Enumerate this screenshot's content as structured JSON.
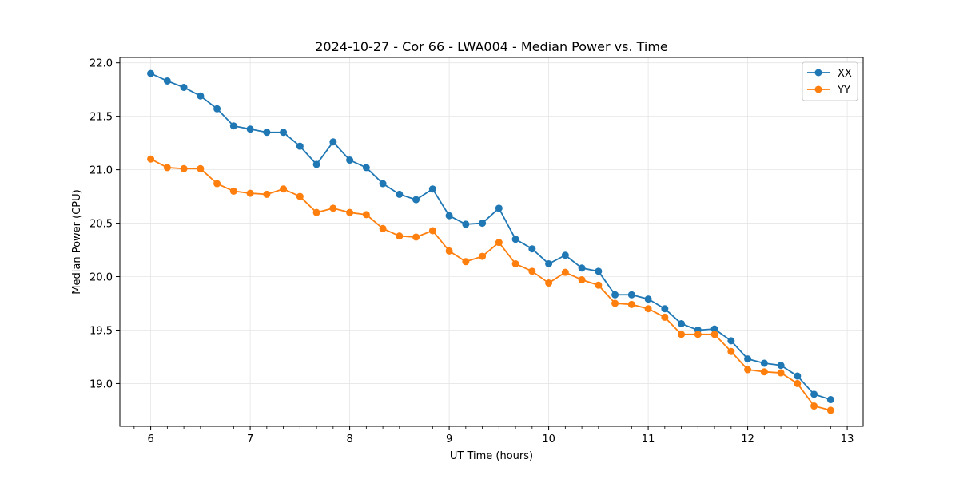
{
  "chart_data": {
    "type": "line",
    "title": "2024-10-27 - Cor 66 - LWA004 - Median Power vs. Time",
    "xlabel": "UT Time (hours)",
    "ylabel": "Median Power (CPU)",
    "xlim": [
      5.69,
      13.16
    ],
    "ylim": [
      18.6,
      22.05
    ],
    "xticks": [
      6,
      7,
      8,
      9,
      10,
      11,
      12,
      13
    ],
    "yticks": [
      19.0,
      19.5,
      20.0,
      20.5,
      21.0,
      21.5,
      22.0
    ],
    "ytick_labels": [
      "19.0",
      "19.5",
      "20.0",
      "20.5",
      "21.0",
      "21.5",
      "22.0"
    ],
    "grid": true,
    "legend_position": "top-right",
    "x": [
      6.0,
      6.1667,
      6.3333,
      6.5,
      6.6667,
      6.8333,
      7.0,
      7.1667,
      7.3333,
      7.5,
      7.6667,
      7.8333,
      8.0,
      8.1667,
      8.3333,
      8.5,
      8.6667,
      8.8333,
      9.0,
      9.1667,
      9.3333,
      9.5,
      9.6667,
      9.8333,
      10.0,
      10.1667,
      10.3333,
      10.5,
      10.6667,
      10.8333,
      11.0,
      11.1667,
      11.3333,
      11.5,
      11.6667,
      11.8333,
      12.0,
      12.1667,
      12.3333,
      12.5,
      12.6667,
      12.8333
    ],
    "series": [
      {
        "name": "XX",
        "color": "#1f77b4",
        "values": [
          21.9,
          21.83,
          21.77,
          21.69,
          21.57,
          21.41,
          21.38,
          21.35,
          21.35,
          21.22,
          21.05,
          21.26,
          21.09,
          21.02,
          20.87,
          20.77,
          20.72,
          20.82,
          20.57,
          20.49,
          20.5,
          20.64,
          20.35,
          20.26,
          20.12,
          20.2,
          20.08,
          20.05,
          19.83,
          19.83,
          19.79,
          19.7,
          19.56,
          19.5,
          19.51,
          19.4,
          19.23,
          19.19,
          19.17,
          19.07,
          18.9,
          18.85
        ]
      },
      {
        "name": "YY",
        "color": "#ff7f0e",
        "values": [
          21.1,
          21.02,
          21.01,
          21.01,
          20.87,
          20.8,
          20.78,
          20.77,
          20.82,
          20.75,
          20.6,
          20.64,
          20.6,
          20.58,
          20.45,
          20.38,
          20.37,
          20.43,
          20.24,
          20.14,
          20.19,
          20.32,
          20.12,
          20.05,
          19.94,
          20.04,
          19.97,
          19.92,
          19.75,
          19.74,
          19.7,
          19.62,
          19.46,
          19.46,
          19.46,
          19.3,
          19.13,
          19.11,
          19.1,
          19.0,
          18.79,
          18.75
        ]
      }
    ]
  }
}
